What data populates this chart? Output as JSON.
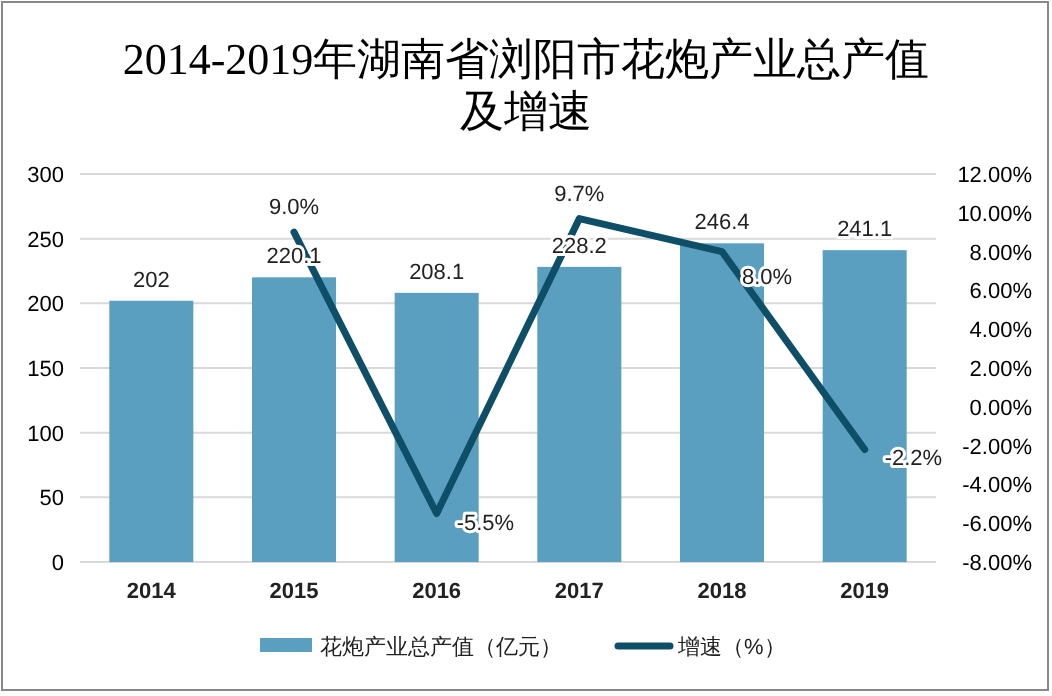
{
  "chart_data": {
    "type": "bar",
    "title": "2014-2019年湖南省浏阳市花炮产业总产值及增速",
    "categories": [
      "2014",
      "2015",
      "2016",
      "2017",
      "2018",
      "2019"
    ],
    "series": [
      {
        "name": "花炮产业总产值（亿元）",
        "color": "#5a9ec0",
        "values": [
          202,
          220.1,
          208.1,
          228.2,
          246.4,
          241.1
        ],
        "value_labels": [
          "202",
          "220.1",
          "208.1",
          "228.2",
          "246.4",
          "241.1"
        ]
      },
      {
        "name": "增速（%）",
        "type": "line",
        "axis": "y2",
        "color": "#0e4e66",
        "values": [
          null,
          9.0,
          -5.5,
          9.7,
          8.0,
          -2.2
        ],
        "value_labels": [
          null,
          "9.0%",
          "-5.5%",
          "9.7%",
          "8.0%",
          "-2.2%"
        ]
      }
    ],
    "ylim": [
      0,
      300
    ],
    "yticks": [
      0,
      50,
      100,
      150,
      200,
      250,
      300
    ],
    "y2lim": [
      -8,
      12
    ],
    "y2ticks": [
      {
        "value": 12,
        "label": "12.00%"
      },
      {
        "value": 10,
        "label": "10.00%"
      },
      {
        "value": 8,
        "label": "8.00%"
      },
      {
        "value": 6,
        "label": "6.00%"
      },
      {
        "value": 4,
        "label": "4.00%"
      },
      {
        "value": 2,
        "label": "2.00%"
      },
      {
        "value": 0,
        "label": "0.00%"
      },
      {
        "value": -2,
        "label": "-2.00%"
      },
      {
        "value": -4,
        "label": "-4.00%"
      },
      {
        "value": -6,
        "label": "-6.00%"
      },
      {
        "value": -8,
        "label": "-8.00%"
      }
    ],
    "grid": "y",
    "legend": "bottom",
    "marker": "none",
    "line_style": "solid"
  }
}
